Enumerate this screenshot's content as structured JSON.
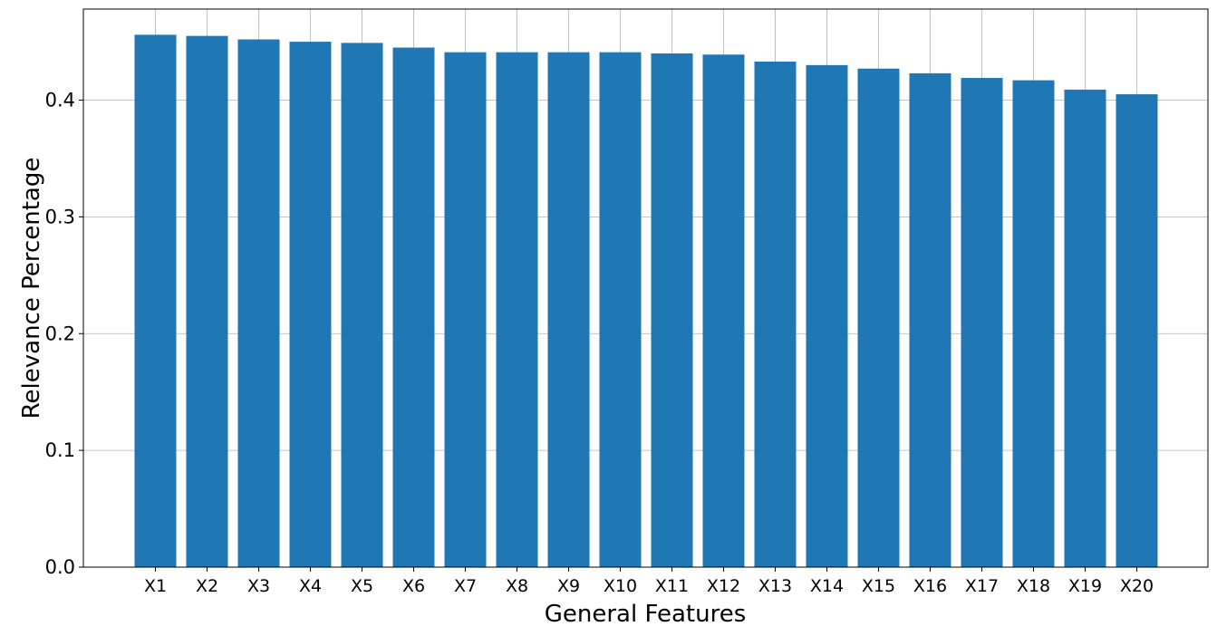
{
  "chart_data": {
    "type": "bar",
    "title": "",
    "xlabel": "General Features",
    "ylabel": "Relevance Percentage",
    "categories": [
      "X1",
      "X2",
      "X3",
      "X4",
      "X5",
      "X6",
      "X7",
      "X8",
      "X9",
      "X10",
      "X11",
      "X12",
      "X13",
      "X14",
      "X15",
      "X16",
      "X17",
      "X18",
      "X19",
      "X20"
    ],
    "values": [
      0.456,
      0.455,
      0.452,
      0.45,
      0.449,
      0.445,
      0.441,
      0.441,
      0.441,
      0.441,
      0.44,
      0.439,
      0.433,
      0.43,
      0.427,
      0.423,
      0.419,
      0.417,
      0.409,
      0.405
    ],
    "ylim": [
      0,
      0.478
    ],
    "yticks": [
      0.0,
      0.1,
      0.2,
      0.3,
      0.4
    ],
    "ytick_labels": [
      "0.0",
      "0.1",
      "0.2",
      "0.3",
      "0.4"
    ],
    "grid": true,
    "bar_color": "#1f77b4"
  }
}
